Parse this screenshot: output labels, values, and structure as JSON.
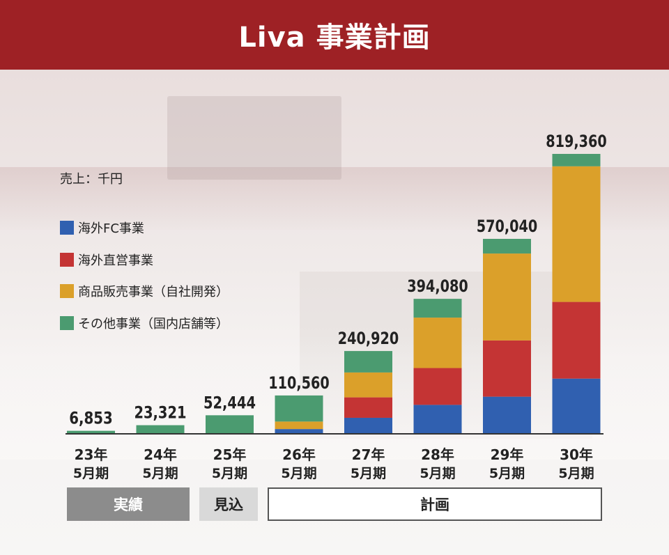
{
  "title": "Liva 事業計画",
  "chart_data": {
    "type": "bar",
    "stacked": true,
    "unit_label": "売上：千円",
    "categories": [
      {
        "year": "23年",
        "period": "5月期"
      },
      {
        "year": "24年",
        "period": "5月期"
      },
      {
        "year": "25年",
        "period": "5月期"
      },
      {
        "year": "26年",
        "period": "5月期"
      },
      {
        "year": "27年",
        "period": "5月期"
      },
      {
        "year": "28年",
        "period": "5月期"
      },
      {
        "year": "29年",
        "period": "5月期"
      },
      {
        "year": "30年",
        "period": "5月期"
      }
    ],
    "totals": [
      6853,
      23321,
      52444,
      110560,
      240920,
      394080,
      570040,
      819360
    ],
    "total_labels": [
      "6,853",
      "23,321",
      "52,444",
      "110,560",
      "240,920",
      "394,080",
      "570,040",
      "819,360"
    ],
    "series": [
      {
        "name": "海外FC事業",
        "color": "#3060b0",
        "values": [
          0,
          0,
          0,
          12000,
          45000,
          83000,
          107000,
          160000
        ]
      },
      {
        "name": "海外直営事業",
        "color": "#c43434",
        "values": [
          0,
          0,
          0,
          0,
          60000,
          108000,
          165000,
          225000
        ]
      },
      {
        "name": "商品販売事業（自社開発）",
        "color": "#dba02a",
        "values": [
          0,
          0,
          0,
          22000,
          73000,
          148000,
          255000,
          398000
        ]
      },
      {
        "name": "その他事業（国内店舗等）",
        "color": "#4b9b70",
        "values": [
          6853,
          23321,
          52444,
          76560,
          62920,
          55080,
          43040,
          36360
        ]
      }
    ],
    "ylim": [
      0,
      819360
    ],
    "grid": false,
    "legend_position": "left"
  },
  "period_groups": [
    {
      "label": "実績"
    },
    {
      "label": "見込"
    },
    {
      "label": "計画"
    }
  ]
}
